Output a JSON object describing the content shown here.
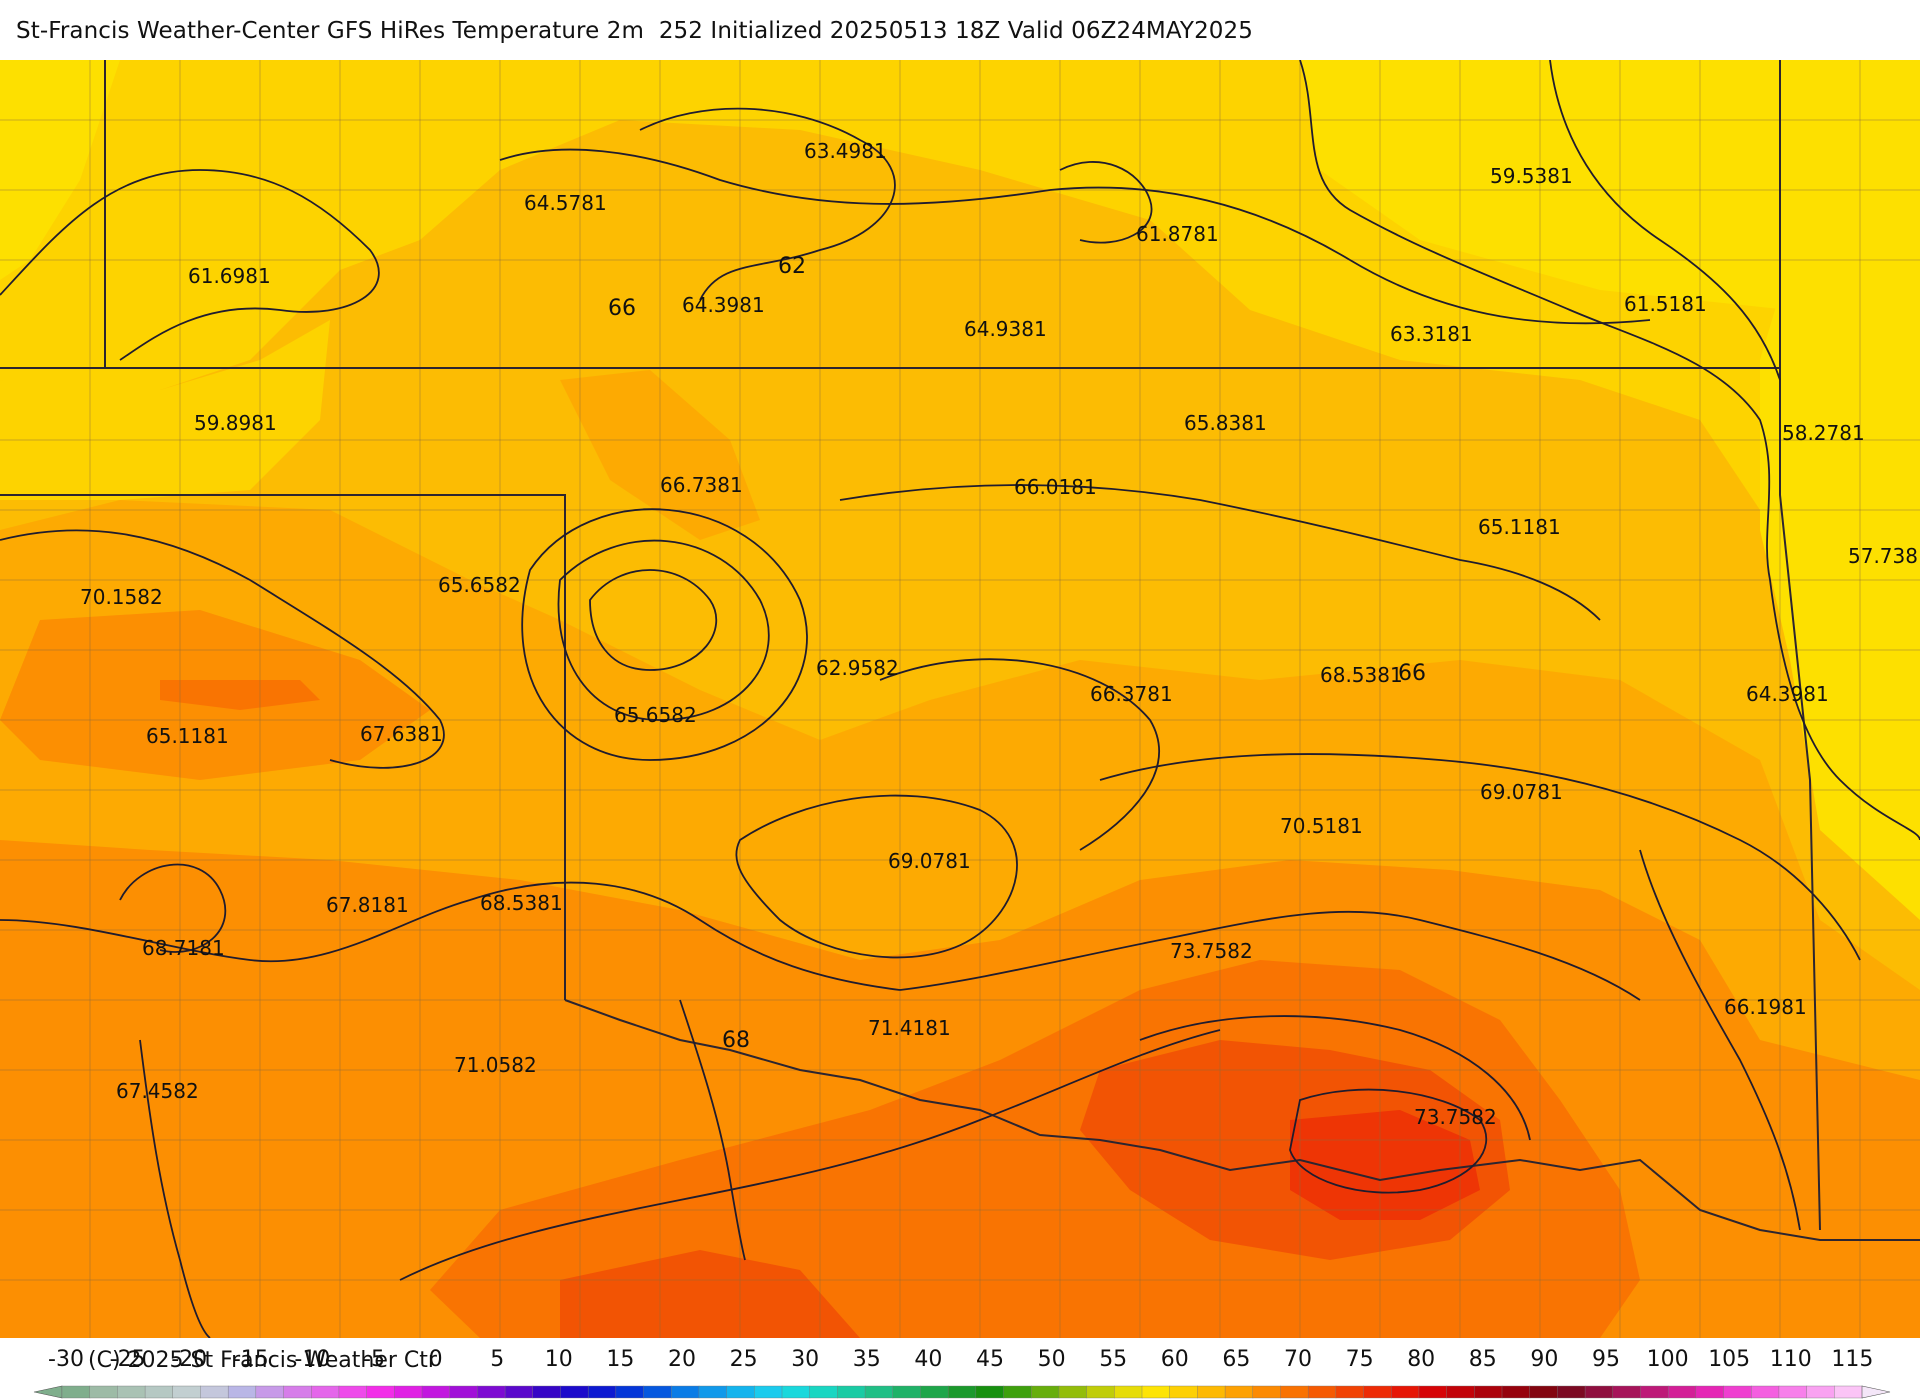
{
  "title": "St-Francis Weather-Center GFS HiRes Temperature 2m  252 Initialized 20250513 18Z Valid 06Z24MAY2025",
  "copyright": "(C) 2025 St Francis Weather Ctr",
  "map": {
    "point_labels": [
      {
        "text": "63.4981"
      },
      {
        "text": "59.5381"
      },
      {
        "text": "64.5781"
      },
      {
        "text": "61.8781"
      },
      {
        "text": "61.6981"
      },
      {
        "text": "64.3981"
      },
      {
        "text": "64.9381"
      },
      {
        "text": "63.3181"
      },
      {
        "text": "61.5181"
      },
      {
        "text": "59.8981"
      },
      {
        "text": "65.8381"
      },
      {
        "text": "58.2781"
      },
      {
        "text": "66.7381"
      },
      {
        "text": "66.0181"
      },
      {
        "text": "65.1181"
      },
      {
        "text": "57.738"
      },
      {
        "text": "70.1582"
      },
      {
        "text": "65.6582"
      },
      {
        "text": "62.9582"
      },
      {
        "text": "66.3781"
      },
      {
        "text": "68.5381"
      },
      {
        "text": "64.3981"
      },
      {
        "text": "65.6582"
      },
      {
        "text": "65.1181"
      },
      {
        "text": "67.6381"
      },
      {
        "text": "69.0781"
      },
      {
        "text": "70.5181"
      },
      {
        "text": "69.0781"
      },
      {
        "text": "67.8181"
      },
      {
        "text": "68.5381"
      },
      {
        "text": "68.7181"
      },
      {
        "text": "73.7582"
      },
      {
        "text": "71.4181"
      },
      {
        "text": "66.1981"
      },
      {
        "text": "71.0582"
      },
      {
        "text": "67.4582"
      },
      {
        "text": "73.7582"
      }
    ],
    "contour_labels": [
      {
        "text": "62"
      },
      {
        "text": "66"
      },
      {
        "text": "66"
      },
      {
        "text": "68"
      }
    ]
  },
  "colorbar": {
    "ticks": [
      "-30",
      "-25",
      "-20",
      "-15",
      "-10",
      "-5",
      "0",
      "5",
      "10",
      "15",
      "20",
      "25",
      "30",
      "35",
      "40",
      "45",
      "50",
      "55",
      "60",
      "65",
      "70",
      "75",
      "80",
      "85",
      "90",
      "95",
      "100",
      "105",
      "110",
      "115"
    ],
    "colors": [
      "#7fae8c",
      "#9dbba6",
      "#a9c2b4",
      "#b5c8c3",
      "#c2cfd1",
      "#c4c7dc",
      "#b9b6e6",
      "#c79ae8",
      "#d67de9",
      "#e466ea",
      "#ee4aea",
      "#f22ee8",
      "#e021e4",
      "#c218df",
      "#a110d8",
      "#7d0bd2",
      "#5a09cc",
      "#3606c6",
      "#1c0bcb",
      "#0d1ad1",
      "#0436d8",
      "#0558df",
      "#0a7ce6",
      "#1199ea",
      "#14b4ed",
      "#1bcbed",
      "#1ad8dc",
      "#19d6c2",
      "#1acba4",
      "#20bf86",
      "#1fb268",
      "#1ea64a",
      "#1b992c",
      "#17900f",
      "#3ea00d",
      "#67ae0c",
      "#93bd0a",
      "#c0cd09",
      "#e6dc08",
      "#fde406",
      "#fdd004",
      "#fdb903",
      "#fda103",
      "#fc8a02",
      "#f97202",
      "#f55a03",
      "#f14204",
      "#ed2b05",
      "#e61606",
      "#d60407",
      "#c20309",
      "#ac020b",
      "#96020d",
      "#830510",
      "#7c0a23",
      "#8f0f3f",
      "#a6145a",
      "#bd1a78",
      "#d31f97",
      "#e526b5",
      "#ef3fd0",
      "#f45fe0",
      "#f780ea",
      "#f9a2f1",
      "#fbc4f6"
    ],
    "accent": {
      "low": "#e8f0c8",
      "high": "#f4e6f8"
    }
  }
}
